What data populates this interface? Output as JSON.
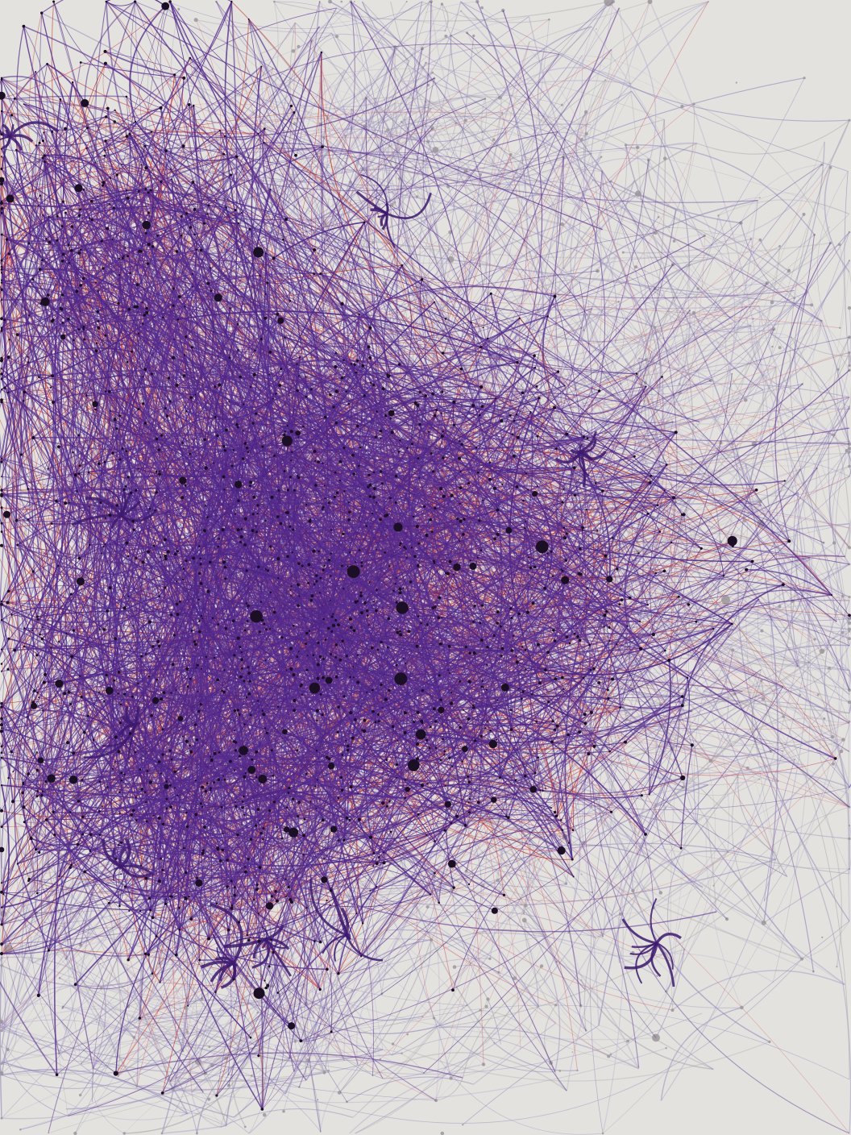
{
  "figure": {
    "kind": "network-graph",
    "has_text": false,
    "background_color": "#e3e2de"
  },
  "palette": {
    "edge_core": "#4b2485",
    "edge_core_alt": "#5a2f91",
    "edge_red": "#c0392b",
    "edge_red_soft": "#d0505a",
    "edge_faded": "#8f80b8",
    "edge_faded_light": "#b5aacd",
    "edge_gray": "#a9a4ad",
    "node_core": "#1a0f24",
    "node_faded": "#9b979b",
    "hub_blob": "#3d1a6e"
  },
  "clusters": [
    {
      "label": "",
      "region": "dense-core",
      "density": "very-high"
    },
    {
      "label": "",
      "region": "upper-left",
      "density": "high"
    },
    {
      "label": "",
      "region": "lower-left",
      "density": "high"
    },
    {
      "label": "",
      "region": "right-arm",
      "density": "medium"
    },
    {
      "label": "",
      "region": "upper-periphery",
      "density": "low-faded"
    },
    {
      "label": "",
      "region": "right-periphery",
      "density": "low-faded"
    }
  ]
}
